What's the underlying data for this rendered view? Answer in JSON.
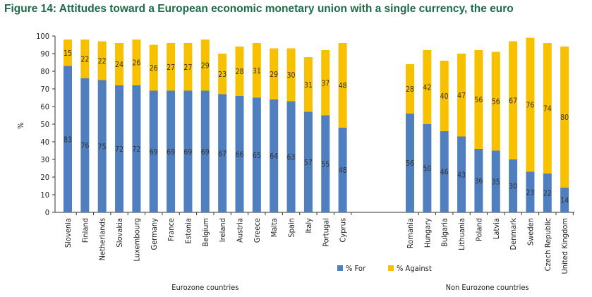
{
  "title": "Figure 14: Attitudes toward a European economic monetary union with a single currency, the euro",
  "colors": {
    "for": "#4f7fbf",
    "against": "#f8c100"
  },
  "chart_data": {
    "type": "bar",
    "stacked": true,
    "ylabel": "%",
    "ylim": [
      0,
      100
    ],
    "yticks": [
      0,
      10,
      20,
      30,
      40,
      50,
      60,
      70,
      80,
      90,
      100
    ],
    "grid": false,
    "legend_position": "bottom-center",
    "groups": [
      {
        "name": "Eurozone countries",
        "categories": [
          "Slovenia",
          "Finland",
          "Netherlands",
          "Slovakia",
          "Luxembourg",
          "Germany",
          "France",
          "Estonia",
          "Belgium",
          "Ireland",
          "Austria",
          "Greece",
          "Malta",
          "Spain",
          "Italy",
          "Portugal",
          "Cyprus"
        ],
        "for": [
          83,
          76,
          75,
          72,
          72,
          69,
          69,
          69,
          69,
          67,
          66,
          65,
          64,
          63,
          57,
          55,
          48
        ],
        "against": [
          15,
          22,
          22,
          24,
          26,
          26,
          27,
          27,
          29,
          23,
          28,
          31,
          29,
          30,
          31,
          37,
          48
        ]
      },
      {
        "name": "Non Eurozone countries",
        "categories": [
          "Romania",
          "Hungary",
          "Bulgaria",
          "Lithuania",
          "Poland",
          "Latvia",
          "Denmark",
          "Sweden",
          "Czech Republic",
          "United Kingdom"
        ],
        "for": [
          56,
          50,
          46,
          43,
          36,
          35,
          30,
          23,
          22,
          14
        ],
        "against": [
          28,
          42,
          40,
          47,
          56,
          56,
          67,
          76,
          74,
          80
        ]
      }
    ],
    "series": [
      {
        "name": "% For"
      },
      {
        "name": "% Against"
      }
    ]
  }
}
